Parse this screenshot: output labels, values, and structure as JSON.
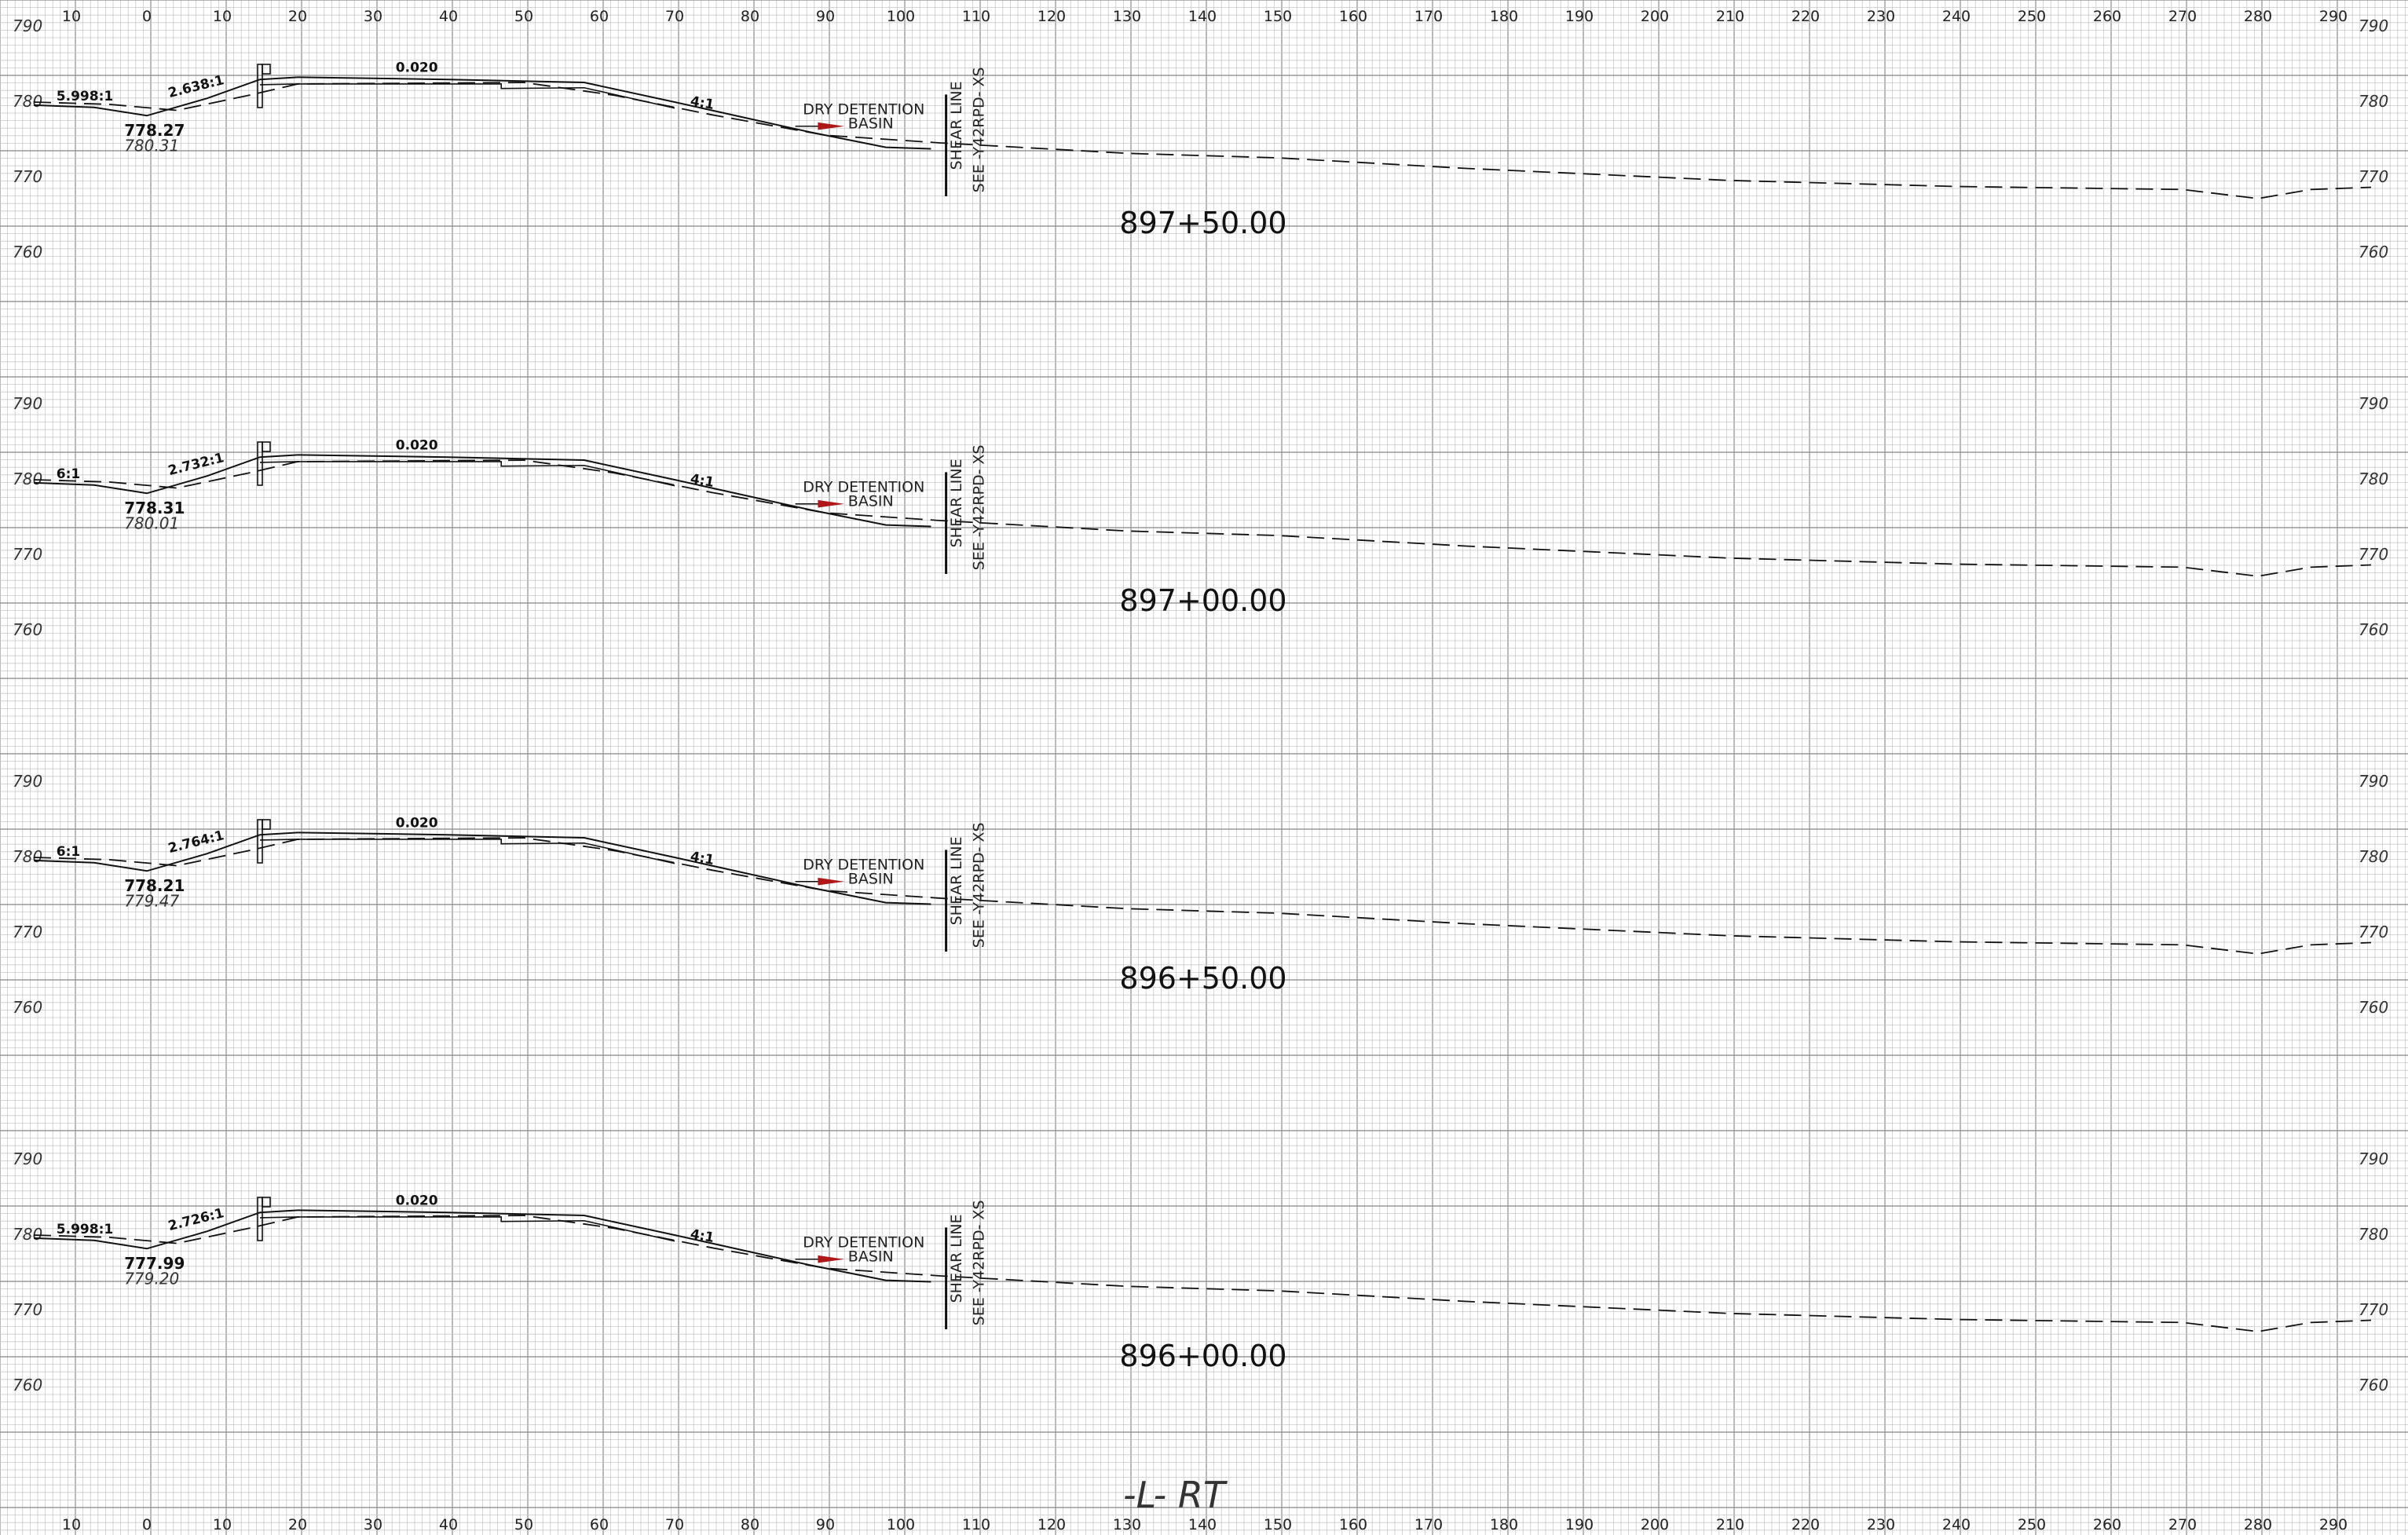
{
  "x_ticks": [
    "10",
    "0",
    "10",
    "20",
    "30",
    "40",
    "50",
    "60",
    "70",
    "80",
    "90",
    "100",
    "110",
    "120",
    "130",
    "140",
    "150",
    "160",
    "170",
    "180",
    "190",
    "200",
    "210",
    "220",
    "230",
    "240",
    "250",
    "260",
    "270",
    "280",
    "290"
  ],
  "sections": [
    {
      "station": "897+50.00",
      "y_labels": [
        "790",
        "780",
        "770",
        "760"
      ],
      "left_slope": "5.998:1",
      "ditch_slope": "2.638:1",
      "pavement_slope": "0.020",
      "fill_slope": "4:1",
      "design_elev": "778.27",
      "existing_elev": "780.31",
      "basin_line1": "DRY DETENTION",
      "basin_line2": "BASIN",
      "match_line1": "SHEAR LINE",
      "match_line2": "SEE -Y42RPD- XS"
    },
    {
      "station": "897+00.00",
      "y_labels": [
        "790",
        "780",
        "770",
        "760"
      ],
      "left_slope": "6:1",
      "ditch_slope": "2.732:1",
      "pavement_slope": "0.020",
      "fill_slope": "4:1",
      "design_elev": "778.31",
      "existing_elev": "780.01",
      "basin_line1": "DRY DETENTION",
      "basin_line2": "BASIN",
      "match_line1": "SHEAR LINE",
      "match_line2": "SEE -Y42RPD- XS"
    },
    {
      "station": "896+50.00",
      "y_labels": [
        "790",
        "780",
        "770",
        "760"
      ],
      "left_slope": "6:1",
      "ditch_slope": "2.764:1",
      "pavement_slope": "0.020",
      "fill_slope": "4:1",
      "design_elev": "778.21",
      "existing_elev": "779.47",
      "basin_line1": "DRY DETENTION",
      "basin_line2": "BASIN",
      "match_line1": "SHEAR LINE",
      "match_line2": "SEE -Y42RPD- XS"
    },
    {
      "station": "896+00.00",
      "y_labels": [
        "790",
        "780",
        "770",
        "760"
      ],
      "left_slope": "5.998:1",
      "ditch_slope": "2.726:1",
      "pavement_slope": "0.020",
      "fill_slope": "4:1",
      "design_elev": "777.99",
      "existing_elev": "779.20",
      "basin_line1": "DRY DETENTION",
      "basin_line2": "BASIN",
      "match_line1": "SHEAR LINE",
      "match_line2": "SEE -Y42RPD- XS"
    }
  ],
  "footer_label": "-L-  RT",
  "colors": {
    "grid_minor": "#c9c9c9",
    "grid_major": "#9a9a9a",
    "line": "#111111",
    "marker": "#b01818"
  }
}
